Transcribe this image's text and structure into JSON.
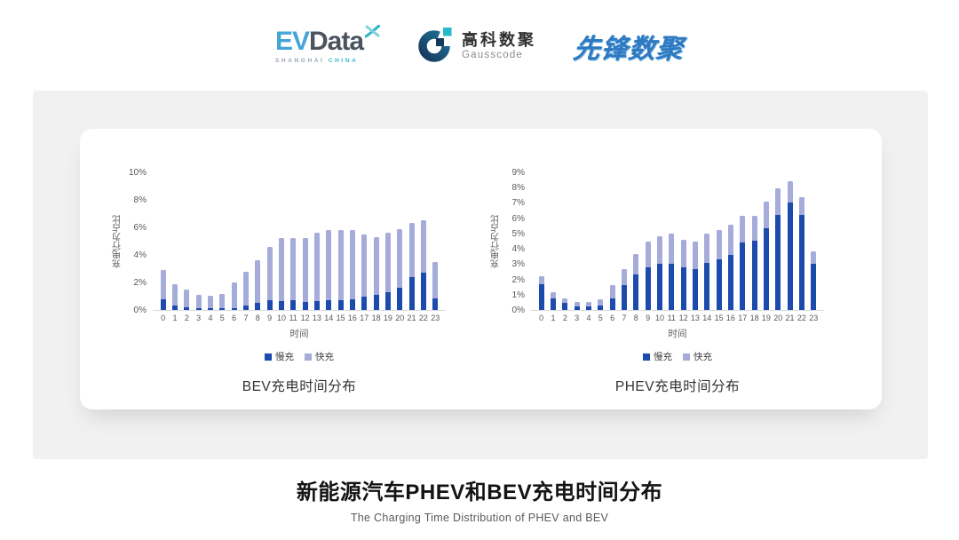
{
  "header": {
    "evdata": {
      "ev": "EV",
      "data": "Data",
      "sub1": "SHANGHAI",
      "sub2": "CHINA"
    },
    "gausscode": {
      "cn": "高科数聚",
      "en": "Gausscode"
    },
    "xianfeng": {
      "text": "先锋数聚"
    }
  },
  "footer": {
    "title": "新能源汽车PHEV和BEV充电时间分布",
    "subtitle": "The Charging Time Distribution of PHEV and BEV"
  },
  "colors": {
    "slow": "#1c4aad",
    "fast": "#a5acda",
    "axis_line": "#d9d9d9",
    "tick_text": "#595959",
    "evdata_teal": "#35b7c9",
    "gauss_navy": "#16395e",
    "gauss_teal": "#29b7cb",
    "xianfeng_blue": "#2e79c0"
  },
  "chart_data": [
    {
      "type": "bar",
      "stacked": true,
      "title": "BEV充电时间分布",
      "ylabel": "充电行为占比",
      "xlabel": "时间",
      "ylim": [
        0,
        10
      ],
      "ytick_step": 2,
      "grid": false,
      "legend_position": "bottom",
      "categories": [
        "0",
        "1",
        "2",
        "3",
        "4",
        "5",
        "6",
        "7",
        "8",
        "9",
        "10",
        "11",
        "12",
        "13",
        "14",
        "15",
        "16",
        "17",
        "18",
        "19",
        "20",
        "21",
        "22",
        "23"
      ],
      "series": [
        {
          "name": "慢充",
          "color": "#1c4aad",
          "values": [
            0.8,
            0.35,
            0.2,
            0.1,
            0.1,
            0.1,
            0.15,
            0.35,
            0.5,
            0.7,
            0.65,
            0.7,
            0.6,
            0.65,
            0.7,
            0.7,
            0.8,
            1.0,
            1.1,
            1.3,
            1.6,
            2.4,
            2.7,
            0.85
          ]
        },
        {
          "name": "快充",
          "color": "#a5acda",
          "values": [
            2.1,
            1.55,
            1.3,
            1.0,
            0.95,
            1.05,
            1.85,
            2.45,
            3.1,
            3.9,
            4.55,
            4.5,
            4.6,
            4.95,
            5.1,
            5.1,
            5.0,
            4.5,
            4.2,
            4.3,
            4.3,
            3.9,
            3.8,
            2.65
          ]
        }
      ]
    },
    {
      "type": "bar",
      "stacked": true,
      "title": "PHEV充电时间分布",
      "ylabel": "充电行为占比",
      "xlabel": "时间",
      "ylim": [
        0,
        9
      ],
      "ytick_step": 1,
      "grid": false,
      "legend_position": "bottom",
      "categories": [
        "0",
        "1",
        "2",
        "3",
        "4",
        "5",
        "6",
        "7",
        "8",
        "9",
        "10",
        "11",
        "12",
        "13",
        "14",
        "15",
        "16",
        "17",
        "18",
        "19",
        "20",
        "21",
        "22",
        "23"
      ],
      "series": [
        {
          "name": "慢充",
          "color": "#1c4aad",
          "values": [
            1.7,
            0.75,
            0.45,
            0.25,
            0.25,
            0.3,
            0.75,
            1.6,
            2.3,
            2.8,
            3.0,
            3.0,
            2.8,
            2.65,
            3.1,
            3.3,
            3.6,
            4.4,
            4.55,
            5.35,
            6.2,
            7.0,
            6.2,
            3.0
          ]
        },
        {
          "name": "快充",
          "color": "#a5acda",
          "values": [
            0.5,
            0.4,
            0.3,
            0.25,
            0.25,
            0.4,
            0.85,
            1.1,
            1.35,
            1.7,
            1.8,
            2.0,
            1.8,
            1.8,
            1.9,
            1.95,
            1.95,
            1.75,
            1.6,
            1.75,
            1.75,
            1.4,
            1.2,
            0.85
          ]
        }
      ]
    }
  ]
}
